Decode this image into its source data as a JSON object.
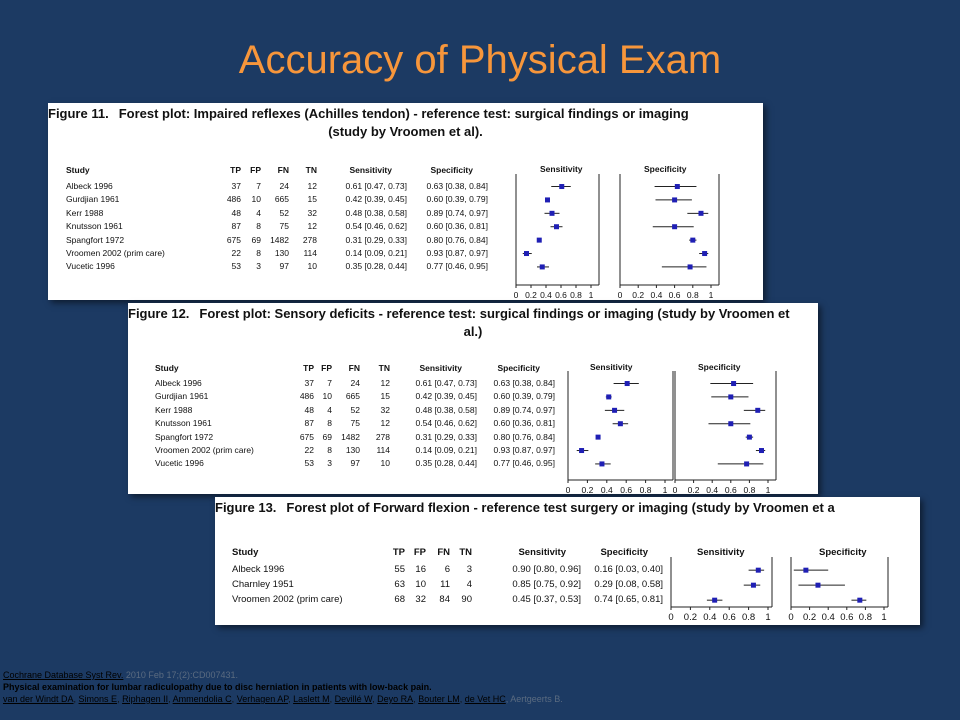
{
  "slide": {
    "title": "Accuracy of Physical Exam"
  },
  "columns": {
    "study": "Study",
    "tp": "TP",
    "fp": "FP",
    "fn": "FN",
    "tn": "TN",
    "sensitivity": "Sensitivity",
    "specificity": "Specificity",
    "plot_sensitivity": "Sensitivity",
    "plot_specificity": "Specificity",
    "ticks": [
      "0",
      "0.2",
      "0.4",
      "0.6",
      "0.8",
      "1"
    ]
  },
  "figures": [
    {
      "label": "Figure 11.",
      "title_line1": "Forest plot: Impaired reflexes (Achilles tendon) - reference test: surgical findings or imaging",
      "title_line2": "(study by Vroomen et al).",
      "rows": [
        {
          "study": "Albeck 1996",
          "tp": "37",
          "fp": "7",
          "fn": "24",
          "tn": "12",
          "sens": "0.61 [0.47, 0.73]",
          "spec": "0.63 [0.38, 0.84]",
          "s": 0.61,
          "sl": 0.47,
          "sh": 0.73,
          "p": 0.63,
          "pl": 0.38,
          "ph": 0.84
        },
        {
          "study": "Gurdjian 1961",
          "tp": "486",
          "fp": "10",
          "fn": "665",
          "tn": "15",
          "sens": "0.42 [0.39, 0.45]",
          "spec": "0.60 [0.39, 0.79]",
          "s": 0.42,
          "sl": 0.39,
          "sh": 0.45,
          "p": 0.6,
          "pl": 0.39,
          "ph": 0.79
        },
        {
          "study": "Kerr 1988",
          "tp": "48",
          "fp": "4",
          "fn": "52",
          "tn": "32",
          "sens": "0.48 [0.38, 0.58]",
          "spec": "0.89 [0.74, 0.97]",
          "s": 0.48,
          "sl": 0.38,
          "sh": 0.58,
          "p": 0.89,
          "pl": 0.74,
          "ph": 0.97
        },
        {
          "study": "Knutsson 1961",
          "tp": "87",
          "fp": "8",
          "fn": "75",
          "tn": "12",
          "sens": "0.54 [0.46, 0.62]",
          "spec": "0.60 [0.36, 0.81]",
          "s": 0.54,
          "sl": 0.46,
          "sh": 0.62,
          "p": 0.6,
          "pl": 0.36,
          "ph": 0.81
        },
        {
          "study": "Spangfort 1972",
          "tp": "675",
          "fp": "69",
          "fn": "1482",
          "tn": "278",
          "sens": "0.31 [0.29, 0.33]",
          "spec": "0.80 [0.76, 0.84]",
          "s": 0.31,
          "sl": 0.29,
          "sh": 0.33,
          "p": 0.8,
          "pl": 0.76,
          "ph": 0.84
        },
        {
          "study": "Vroomen 2002 (prim care)",
          "tp": "22",
          "fp": "8",
          "fn": "130",
          "tn": "114",
          "sens": "0.14 [0.09, 0.21]",
          "spec": "0.93 [0.87, 0.97]",
          "s": 0.14,
          "sl": 0.09,
          "sh": 0.21,
          "p": 0.93,
          "pl": 0.87,
          "ph": 0.97
        },
        {
          "study": "Vucetic 1996",
          "tp": "53",
          "fp": "3",
          "fn": "97",
          "tn": "10",
          "sens": "0.35 [0.28, 0.44]",
          "spec": "0.77 [0.46, 0.95]",
          "s": 0.35,
          "sl": 0.28,
          "sh": 0.44,
          "p": 0.77,
          "pl": 0.46,
          "ph": 0.95
        }
      ]
    },
    {
      "label": "Figure 12.",
      "title_line1": "Forest plot: Sensory deficits - reference test: surgical findings or imaging (study by Vroomen et",
      "title_line2": "al.)",
      "rows": [
        {
          "study": "Albeck 1996",
          "tp": "37",
          "fp": "7",
          "fn": "24",
          "tn": "12",
          "sens": "0.61 [0.47, 0.73]",
          "spec": "0.63 [0.38, 0.84]",
          "s": 0.61,
          "sl": 0.47,
          "sh": 0.73,
          "p": 0.63,
          "pl": 0.38,
          "ph": 0.84
        },
        {
          "study": "Gurdjian 1961",
          "tp": "486",
          "fp": "10",
          "fn": "665",
          "tn": "15",
          "sens": "0.42 [0.39, 0.45]",
          "spec": "0.60 [0.39, 0.79]",
          "s": 0.42,
          "sl": 0.39,
          "sh": 0.45,
          "p": 0.6,
          "pl": 0.39,
          "ph": 0.79
        },
        {
          "study": "Kerr 1988",
          "tp": "48",
          "fp": "4",
          "fn": "52",
          "tn": "32",
          "sens": "0.48 [0.38, 0.58]",
          "spec": "0.89 [0.74, 0.97]",
          "s": 0.48,
          "sl": 0.38,
          "sh": 0.58,
          "p": 0.89,
          "pl": 0.74,
          "ph": 0.97
        },
        {
          "study": "Knutsson 1961",
          "tp": "87",
          "fp": "8",
          "fn": "75",
          "tn": "12",
          "sens": "0.54 [0.46, 0.62]",
          "spec": "0.60 [0.36, 0.81]",
          "s": 0.54,
          "sl": 0.46,
          "sh": 0.62,
          "p": 0.6,
          "pl": 0.36,
          "ph": 0.81
        },
        {
          "study": "Spangfort 1972",
          "tp": "675",
          "fp": "69",
          "fn": "1482",
          "tn": "278",
          "sens": "0.31 [0.29, 0.33]",
          "spec": "0.80 [0.76, 0.84]",
          "s": 0.31,
          "sl": 0.29,
          "sh": 0.33,
          "p": 0.8,
          "pl": 0.76,
          "ph": 0.84
        },
        {
          "study": "Vroomen 2002 (prim care)",
          "tp": "22",
          "fp": "8",
          "fn": "130",
          "tn": "114",
          "sens": "0.14 [0.09, 0.21]",
          "spec": "0.93 [0.87, 0.97]",
          "s": 0.14,
          "sl": 0.09,
          "sh": 0.21,
          "p": 0.93,
          "pl": 0.87,
          "ph": 0.97
        },
        {
          "study": "Vucetic 1996",
          "tp": "53",
          "fp": "3",
          "fn": "97",
          "tn": "10",
          "sens": "0.35 [0.28, 0.44]",
          "spec": "0.77 [0.46, 0.95]",
          "s": 0.35,
          "sl": 0.28,
          "sh": 0.44,
          "p": 0.77,
          "pl": 0.46,
          "ph": 0.95
        }
      ]
    },
    {
      "label": "Figure 13.",
      "title_line1": "Forest plot of Forward flexion - reference test surgery or imaging (study by Vroomen et a",
      "title_line2": "",
      "rows": [
        {
          "study": "Albeck 1996",
          "tp": "55",
          "fp": "16",
          "fn": "6",
          "tn": "3",
          "sens": "0.90 [0.80, 0.96]",
          "spec": "0.16 [0.03, 0.40]",
          "s": 0.9,
          "sl": 0.8,
          "sh": 0.96,
          "p": 0.16,
          "pl": 0.03,
          "ph": 0.4
        },
        {
          "study": "Charnley 1951",
          "tp": "63",
          "fp": "10",
          "fn": "11",
          "tn": "4",
          "sens": "0.85 [0.75, 0.92]",
          "spec": "0.29 [0.08, 0.58]",
          "s": 0.85,
          "sl": 0.75,
          "sh": 0.92,
          "p": 0.29,
          "pl": 0.08,
          "ph": 0.58
        },
        {
          "study": "Vroomen 2002 (prim care)",
          "tp": "68",
          "fp": "32",
          "fn": "84",
          "tn": "90",
          "sens": "0.45 [0.37, 0.53]",
          "spec": "0.74 [0.65, 0.81]",
          "s": 0.45,
          "sl": 0.37,
          "sh": 0.53,
          "p": 0.74,
          "pl": 0.65,
          "ph": 0.81
        }
      ]
    }
  ],
  "footer": {
    "journal": "Cochrane Database Syst Rev.",
    "citation": " 2010 Feb 17;(2):CD007431.",
    "article_title": "Physical examination for lumbar radiculopathy due to disc herniation in patients with low-back pain.",
    "authors": [
      "van der Windt DA",
      "Simons E",
      "Riphagen II",
      "Ammendolia C",
      "Verhagen AP",
      "Laslett M",
      "Devillé W",
      "Deyo RA",
      "Bouter LM",
      "de Vet HC"
    ],
    "last_author": ", Aertgeerts B."
  },
  "colors": {
    "background": "#1c3a63",
    "title": "#f7963b",
    "marker": "#1f1fb4"
  }
}
